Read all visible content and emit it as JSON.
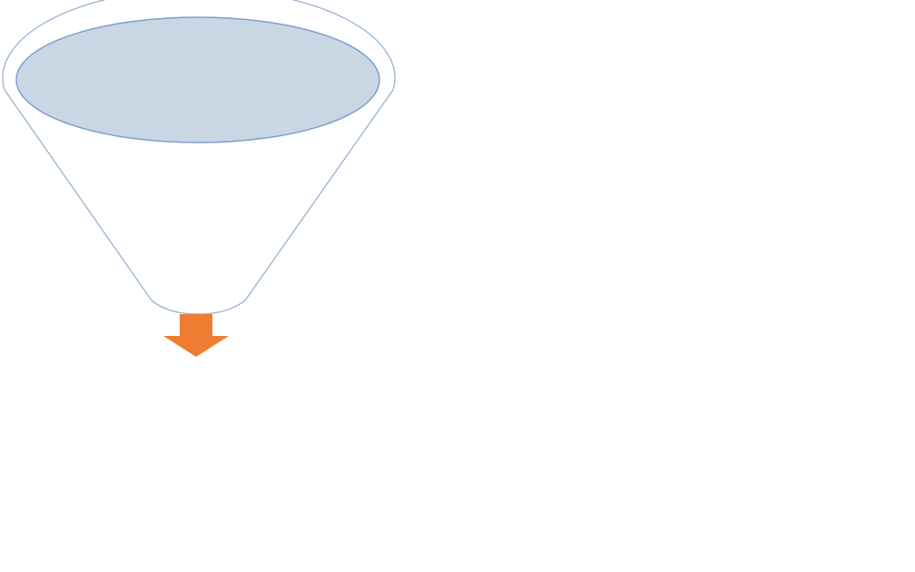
{
  "diagram": {
    "type": "funnel",
    "colors": {
      "funnel_outline": "#8fabd0",
      "funnel_body_fill": "#ffffff",
      "funnel_opening_fill": "#c9d7e5",
      "funnel_opening_stroke": "#7f9fc9",
      "arrow_fill": "#ee7d31"
    },
    "icons": {
      "funnel": "funnel-icon",
      "output_arrow": "arrow-down-icon"
    }
  }
}
